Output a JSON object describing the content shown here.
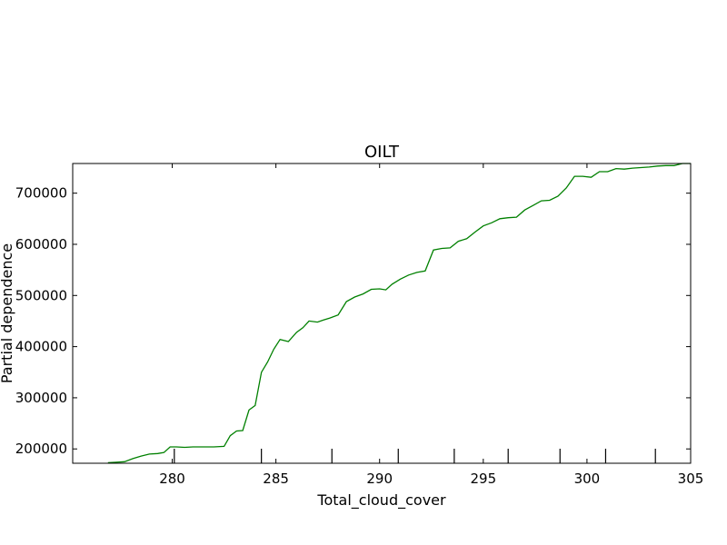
{
  "chart_data": {
    "type": "line",
    "title": "OILT",
    "xlabel": "Total_cloud_cover",
    "ylabel": "Partial dependence",
    "xlim": [
      275.2,
      305.0
    ],
    "ylim": [
      172000,
      758000
    ],
    "x_ticks": [
      280,
      285,
      290,
      295,
      300,
      305
    ],
    "x_tick_labels": [
      "280",
      "285",
      "290",
      "295",
      "300",
      "305"
    ],
    "y_ticks": [
      200000,
      300000,
      400000,
      500000,
      600000,
      700000
    ],
    "y_tick_labels": [
      "200000",
      "300000",
      "400000",
      "500000",
      "600000",
      "700000"
    ],
    "rug_x": [
      280.1,
      284.3,
      287.7,
      290.9,
      293.6,
      296.2,
      298.7,
      300.9,
      303.3
    ],
    "line_color": "#008000",
    "grid": false,
    "series": [
      {
        "x": [
          276.9,
          277.3,
          277.7,
          278.1,
          278.5,
          278.9,
          279.3,
          279.6,
          279.9,
          280.2,
          280.6,
          281.0,
          281.5,
          282.0,
          282.5,
          282.8,
          283.1,
          283.4,
          283.7,
          284.0,
          284.3,
          284.6,
          284.9,
          285.2,
          285.6,
          286.0,
          286.3,
          286.6,
          287.0,
          287.3,
          287.6,
          288.0,
          288.4,
          288.8,
          289.2,
          289.6,
          290.0,
          290.3,
          290.6,
          291.0,
          291.4,
          291.8,
          292.2,
          292.6,
          293.0,
          293.4,
          293.8,
          294.2,
          294.6,
          295.0,
          295.4,
          295.8,
          296.2,
          296.6,
          297.0,
          297.4,
          297.8,
          298.2,
          298.6,
          299.0,
          299.4,
          299.8,
          300.2,
          300.6,
          301.0,
          301.4,
          301.8,
          302.2,
          302.6,
          303.0,
          303.4,
          303.8,
          304.2,
          304.6,
          305.0
        ],
        "y": [
          173000,
          174000,
          175000,
          181000,
          186000,
          190000,
          191000,
          193000,
          204000,
          204000,
          203000,
          204000,
          204000,
          204000,
          205000,
          226000,
          235000,
          236000,
          276000,
          285000,
          350000,
          370000,
          395000,
          414000,
          410000,
          428000,
          437000,
          450000,
          448000,
          452000,
          456000,
          462000,
          488000,
          497000,
          503000,
          512000,
          513000,
          511000,
          522000,
          532000,
          540000,
          545000,
          548000,
          589000,
          592000,
          593000,
          606000,
          611000,
          624000,
          636000,
          642000,
          650000,
          652000,
          653000,
          667000,
          676000,
          685000,
          686000,
          694000,
          710000,
          733000,
          733000,
          731000,
          742000,
          742000,
          748000,
          747000,
          749000,
          750000,
          751000,
          753000,
          754000,
          754000,
          758000,
          760000
        ]
      }
    ]
  }
}
